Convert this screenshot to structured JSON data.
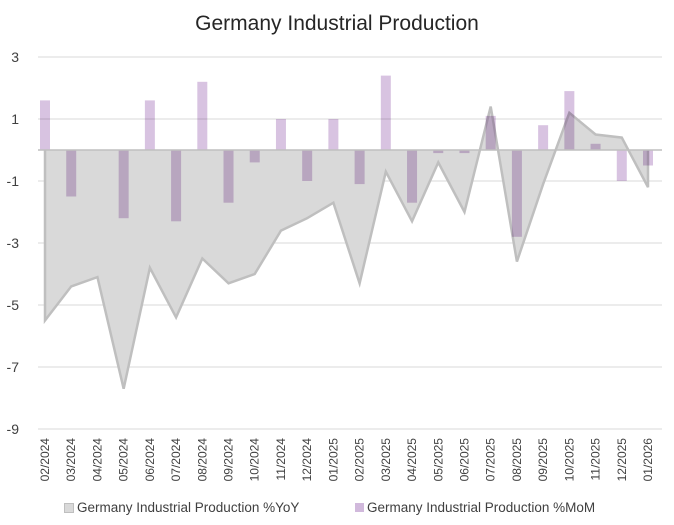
{
  "chart_data": {
    "type": "bar+area",
    "title": "Germany Industrial Production",
    "xlabel": "",
    "ylabel": "",
    "ylim": [
      -9,
      3
    ],
    "yticks": [
      3,
      1,
      -1,
      -3,
      -5,
      -7,
      -9
    ],
    "grid": true,
    "legend_position": "bottom",
    "categories": [
      "02/2024",
      "03/2024",
      "04/2024",
      "05/2024",
      "06/2024",
      "07/2024",
      "08/2024",
      "09/2024",
      "10/2024",
      "11/2024",
      "12/2024",
      "01/2025",
      "02/2025",
      "03/2025",
      "04/2025",
      "05/2025",
      "06/2025",
      "07/2025",
      "08/2025",
      "09/2025",
      "10/2025",
      "11/2025",
      "12/2025",
      "01/2026"
    ],
    "series": [
      {
        "name": "Germany Industrial Production %YoY",
        "type": "area",
        "color": "#bfbfbf",
        "fill": "#d9d9d9",
        "values": [
          -5.5,
          -4.4,
          -4.1,
          -7.7,
          -3.8,
          -5.4,
          -3.5,
          -4.3,
          -4.0,
          -2.6,
          -2.2,
          -1.7,
          -4.3,
          -0.7,
          -2.3,
          -0.4,
          -2.0,
          1.4,
          -3.6,
          -1.1,
          1.2,
          0.5,
          0.4,
          -1.2
        ]
      },
      {
        "name": "Germany Industrial Production  %MoM",
        "type": "bar",
        "color": "#d1b9dc",
        "values": [
          1.6,
          -1.5,
          0.0,
          -2.2,
          1.6,
          -2.3,
          2.2,
          -1.7,
          -0.4,
          1.0,
          -1.0,
          1.0,
          -1.1,
          2.4,
          -1.7,
          -0.1,
          -0.1,
          1.1,
          -2.8,
          0.8,
          1.9,
          0.2,
          -1.0,
          -0.5
        ]
      }
    ]
  }
}
